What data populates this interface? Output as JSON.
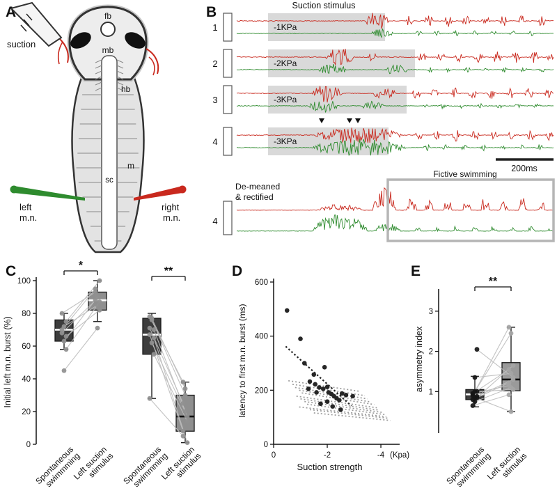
{
  "colors": {
    "right_red": "#c9291e",
    "left_green": "#2e8b2e",
    "stimulus_gray": "#d9d9d9",
    "box_dark": "#3d3d3d",
    "box_gray": "#8f8f8f"
  },
  "panels": {
    "A": {
      "label": "A",
      "suction": "suction",
      "fb": "fb",
      "mb": "mb",
      "hb": "hb",
      "m": "m",
      "sc": "sc",
      "left_line1": "left",
      "left_line2": "m.n.",
      "right_line1": "right",
      "right_line2": "m.n."
    },
    "B": {
      "label": "B",
      "title": "Suction stimulus",
      "scalebar": "200ms",
      "demeaned_line1": "De-meaned",
      "demeaned_line2": "& rectified",
      "fictive": "Fictive swimming",
      "arrows": [
        462,
        502,
        514
      ],
      "rows": [
        {
          "num": "1",
          "stim": "-1KPa",
          "stim_end": 553,
          "red_y": 30,
          "green_y": 48,
          "red_bursts": [
            [
              525,
              558,
              13
            ],
            [
              583,
              595,
              9
            ],
            [
              610,
              622,
              8
            ],
            [
              637,
              649,
              9
            ],
            [
              664,
              676,
              8
            ],
            [
              691,
              703,
              9
            ],
            [
              718,
              730,
              8
            ],
            [
              745,
              757,
              9
            ],
            [
              772,
              784,
              8
            ]
          ],
          "green_bursts": [
            [
              533,
              565,
              7
            ],
            [
              596,
              606,
              4
            ],
            [
              623,
              633,
              4
            ],
            [
              650,
              660,
              4
            ],
            [
              677,
              687,
              4
            ],
            [
              704,
              714,
              4
            ],
            [
              731,
              741,
              4
            ],
            [
              758,
              768,
              4
            ]
          ]
        },
        {
          "num": "2",
          "stim": "-2KPa",
          "stim_end": 596,
          "red_y": 82,
          "green_y": 100,
          "red_bursts": [
            [
              468,
              508,
              14
            ],
            [
              528,
              542,
              6
            ],
            [
              600,
              612,
              9
            ],
            [
              627,
              639,
              8
            ],
            [
              654,
              666,
              9
            ],
            [
              681,
              693,
              8
            ],
            [
              708,
              720,
              9
            ],
            [
              735,
              747,
              8
            ],
            [
              762,
              774,
              9
            ],
            [
              786,
              795,
              7
            ]
          ],
          "green_bursts": [
            [
              458,
              498,
              9
            ],
            [
              552,
              586,
              8
            ],
            [
              612,
              622,
              4
            ],
            [
              639,
              649,
              4
            ],
            [
              666,
              676,
              4
            ],
            [
              693,
              703,
              4
            ],
            [
              720,
              730,
              4
            ],
            [
              747,
              757,
              4
            ],
            [
              774,
              784,
              4
            ]
          ]
        },
        {
          "num": "3",
          "stim": "-3KPa",
          "stim_end": 584,
          "red_y": 134,
          "green_y": 152,
          "red_bursts": [
            [
              448,
              492,
              14
            ],
            [
              535,
              570,
              8
            ],
            [
              592,
              604,
              9
            ],
            [
              619,
              631,
              8
            ],
            [
              646,
              658,
              9
            ],
            [
              673,
              685,
              8
            ],
            [
              700,
              712,
              9
            ],
            [
              727,
              739,
              8
            ],
            [
              754,
              766,
              9
            ],
            [
              781,
              793,
              8
            ]
          ],
          "green_bursts": [
            [
              443,
              488,
              9
            ],
            [
              518,
              552,
              7
            ],
            [
              604,
              614,
              4
            ],
            [
              631,
              641,
              4
            ],
            [
              658,
              668,
              4
            ],
            [
              685,
              695,
              4
            ],
            [
              712,
              722,
              4
            ],
            [
              739,
              749,
              4
            ],
            [
              766,
              776,
              4
            ]
          ]
        },
        {
          "num": "4",
          "stim": "-3KPa",
          "stim_end": 558,
          "red_y": 194,
          "green_y": 212,
          "red_bursts": [
            [
              452,
              578,
              12
            ],
            [
              595,
              607,
              9
            ],
            [
              622,
              634,
              8
            ],
            [
              649,
              661,
              9
            ],
            [
              676,
              688,
              8
            ],
            [
              703,
              715,
              9
            ],
            [
              730,
              742,
              8
            ],
            [
              757,
              769,
              9
            ],
            [
              784,
              795,
              8
            ]
          ],
          "green_bursts": [
            [
              448,
              585,
              13
            ],
            [
              608,
              618,
              5
            ],
            [
              635,
              645,
              5
            ],
            [
              662,
              672,
              5
            ],
            [
              689,
              699,
              5
            ],
            [
              716,
              726,
              5
            ],
            [
              743,
              753,
              5
            ],
            [
              770,
              780,
              5
            ]
          ]
        }
      ],
      "demeaned": {
        "num": "4",
        "red_y": 302,
        "green_y": 332,
        "red_bursts": [
          [
            455,
            520,
            9
          ],
          [
            535,
            568,
            36
          ],
          [
            584,
            598,
            18
          ],
          [
            610,
            622,
            15
          ],
          [
            637,
            649,
            19
          ],
          [
            664,
            676,
            14
          ],
          [
            691,
            703,
            21
          ],
          [
            718,
            730,
            15
          ],
          [
            745,
            757,
            19
          ],
          [
            772,
            784,
            14
          ]
        ],
        "green_bursts": [
          [
            448,
            528,
            24
          ],
          [
            538,
            575,
            12
          ],
          [
            596,
            606,
            6
          ],
          [
            623,
            633,
            6
          ],
          [
            650,
            660,
            8
          ],
          [
            677,
            687,
            6
          ],
          [
            704,
            714,
            8
          ],
          [
            731,
            741,
            6
          ],
          [
            758,
            768,
            7
          ],
          [
            785,
            793,
            5
          ]
        ]
      }
    },
    "C": {
      "label": "C"
    },
    "D": {
      "label": "D"
    },
    "E": {
      "label": "E"
    }
  },
  "chart_data": [
    {
      "id": "C",
      "type": "box",
      "ylabel": "Initial left m.n. burst (%)",
      "ylim": [
        0,
        100
      ],
      "yticks": [
        0,
        20,
        40,
        60,
        80,
        100
      ],
      "categories": [
        [
          "Spontaneous",
          "swimmming"
        ],
        [
          "Left suction",
          "stimulus"
        ],
        [
          "Spontaneous",
          "swimmming"
        ],
        [
          "Left suction",
          "stimulus"
        ]
      ],
      "boxes": [
        {
          "q1": 63,
          "median": 70,
          "q3": 76,
          "lo": 58,
          "hi": 80,
          "fill": "#3d3d3d",
          "median_color": "#ffffff"
        },
        {
          "q1": 82,
          "median": 88,
          "q3": 93,
          "lo": 75,
          "hi": 100,
          "fill": "#8f8f8f",
          "median_color": "#ffffff"
        },
        {
          "q1": 55,
          "median": 67,
          "q3": 77,
          "lo": 28,
          "hi": 80,
          "fill": "#3d3d3d",
          "median_color": "#ffffff"
        },
        {
          "q1": 8,
          "median": 17,
          "q3": 30,
          "lo": 1,
          "hi": 38,
          "fill": "#8f8f8f",
          "median_color": "#111111"
        }
      ],
      "pairs": [
        {
          "a": 0,
          "b": 1,
          "values": [
            [
              68,
              88
            ],
            [
              72,
              85
            ],
            [
              75,
              100
            ],
            [
              70,
              95
            ],
            [
              63,
              90
            ],
            [
              58,
              87
            ],
            [
              80,
              93
            ],
            [
              45,
              71
            ],
            [
              66,
              82
            ]
          ]
        },
        {
          "a": 2,
          "b": 3,
          "values": [
            [
              78,
              38
            ],
            [
              76,
              30
            ],
            [
              70,
              17
            ],
            [
              67,
              8
            ],
            [
              62,
              20
            ],
            [
              55,
              14
            ],
            [
              28,
              5
            ],
            [
              77,
              34
            ],
            [
              65,
              1
            ],
            [
              71,
              25
            ]
          ]
        }
      ],
      "dot_colors": [
        "#909090",
        "#909090",
        "#909090",
        "#909090"
      ],
      "significance": [
        {
          "a": 0,
          "b": 1,
          "label": "*"
        },
        {
          "a": 2,
          "b": 3,
          "label": "**"
        }
      ]
    },
    {
      "id": "D",
      "type": "scatter",
      "xlabel": "Suction strength",
      "x_unit": "(Kpa)",
      "ylabel": "latency to first m.n. burst (ms)",
      "xlim": [
        0,
        -4.7
      ],
      "ylim": [
        0,
        600
      ],
      "xticks": [
        0,
        -2,
        -4
      ],
      "yticks": [
        0,
        200,
        400,
        600
      ],
      "points": [
        [
          -0.5,
          495
        ],
        [
          -1.0,
          390
        ],
        [
          -1.15,
          300
        ],
        [
          -1.5,
          258
        ],
        [
          -1.35,
          232
        ],
        [
          -1.9,
          285
        ],
        [
          -1.55,
          222
        ],
        [
          -1.7,
          210
        ],
        [
          -1.85,
          205
        ],
        [
          -2.0,
          212
        ],
        [
          -2.05,
          192
        ],
        [
          -2.15,
          186
        ],
        [
          -2.25,
          178
        ],
        [
          -2.35,
          170
        ],
        [
          -2.45,
          163
        ],
        [
          -2.55,
          188
        ],
        [
          -2.7,
          182
        ],
        [
          -2.95,
          178
        ],
        [
          -2.0,
          158
        ],
        [
          -1.75,
          150
        ],
        [
          -2.2,
          140
        ],
        [
          -2.5,
          128
        ],
        [
          -1.3,
          205
        ],
        [
          -1.6,
          192
        ]
      ],
      "fit_line_black": [
        -0.45,
        362,
        -2.9,
        142
      ],
      "fit_lines_gray": [
        [
          -0.55,
          235,
          -3.2,
          196
        ],
        [
          -0.7,
          222,
          -3.4,
          180
        ],
        [
          -0.8,
          210,
          -3.5,
          168
        ],
        [
          -0.95,
          200,
          -3.6,
          157
        ],
        [
          -1.05,
          190,
          -3.75,
          147
        ],
        [
          -0.85,
          178,
          -3.85,
          135
        ],
        [
          -1.0,
          168,
          -3.95,
          126
        ],
        [
          -1.15,
          158,
          -4.05,
          118
        ],
        [
          -1.25,
          148,
          -4.15,
          110
        ],
        [
          -0.95,
          138,
          -4.2,
          102
        ],
        [
          -1.35,
          128,
          -4.3,
          96
        ],
        [
          -1.5,
          116,
          -4.35,
          88
        ]
      ]
    },
    {
      "id": "E",
      "type": "box",
      "ylabel": "asymmetry index",
      "ylim": [
        0,
        3.5
      ],
      "yticks": [
        1,
        2,
        3
      ],
      "categories": [
        [
          "Spontaneous",
          "swimmming"
        ],
        [
          "Left suction",
          "stimulus"
        ]
      ],
      "boxes": [
        {
          "q1": 0.8,
          "median": 0.93,
          "q3": 1.05,
          "lo": 0.62,
          "hi": 1.38,
          "fill": "#3d3d3d",
          "median_color": "#ffffff"
        },
        {
          "q1": 1.02,
          "median": 1.3,
          "q3": 1.72,
          "lo": 0.5,
          "hi": 2.6,
          "fill": "#9a9a9a",
          "median_color": "#111111"
        }
      ],
      "pairs": [
        {
          "a": 0,
          "b": 1,
          "values": [
            [
              0.9,
              2.6
            ],
            [
              1.0,
              2.45
            ],
            [
              0.85,
              1.65
            ],
            [
              0.95,
              1.55
            ],
            [
              1.35,
              1.45
            ],
            [
              0.88,
              1.3
            ],
            [
              0.8,
              1.22
            ],
            [
              0.75,
              1.1
            ],
            [
              1.0,
              1.05
            ],
            [
              0.65,
              0.92
            ],
            [
              0.85,
              0.5
            ],
            [
              2.05,
              1.35
            ],
            [
              0.95,
              1.15
            ]
          ]
        }
      ],
      "dot_colors": [
        "#161616",
        "#a5a5a5"
      ],
      "significance": [
        {
          "a": 0,
          "b": 1,
          "label": "**"
        }
      ]
    }
  ]
}
